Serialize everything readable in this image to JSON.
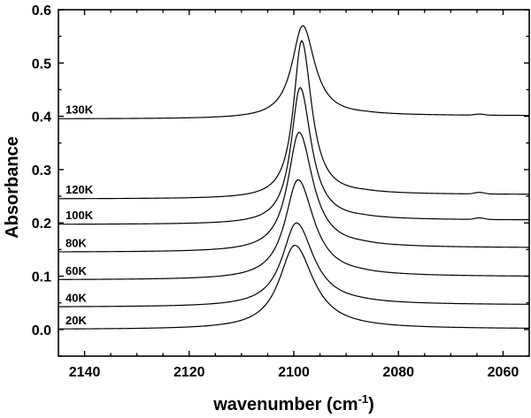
{
  "chart_data": {
    "type": "line",
    "xlabel": "wavenumber (cm",
    "xlabel_sup": "-1",
    "xlabel_end": ")",
    "ylabel": "Absorbance",
    "xlim": [
      2145,
      2055
    ],
    "ylim": [
      -0.05,
      0.6
    ],
    "x_ticks": [
      2140,
      2120,
      2100,
      2080,
      2060
    ],
    "y_ticks": [
      0.0,
      0.1,
      0.2,
      0.3,
      0.4,
      0.5,
      0.6
    ],
    "y_tick_labels": [
      "0.0",
      "0.1",
      "0.2",
      "0.3",
      "0.4",
      "0.5",
      "0.6"
    ],
    "series": [
      {
        "name": "20K",
        "baseline": 0.0,
        "peak_x": 2099.8,
        "peak_height": 0.158,
        "left_hwhm": 3.6,
        "right_hwhm": 4.3,
        "tail": 0.001,
        "shoulder": 0.0
      },
      {
        "name": "40K",
        "baseline": 0.042,
        "peak_x": 2099.5,
        "peak_height": 0.158,
        "left_hwhm": 3.3,
        "right_hwhm": 4.0,
        "tail": 0.004,
        "shoulder": 0.0
      },
      {
        "name": "60K",
        "baseline": 0.093,
        "peak_x": 2099.2,
        "peak_height": 0.188,
        "left_hwhm": 3.0,
        "right_hwhm": 3.7,
        "tail": 0.006,
        "shoulder": 0.0
      },
      {
        "name": "80K",
        "baseline": 0.145,
        "peak_x": 2099.0,
        "peak_height": 0.225,
        "left_hwhm": 2.6,
        "right_hwhm": 3.2,
        "tail": 0.008,
        "shoulder": 0.0
      },
      {
        "name": "100K",
        "baseline": 0.197,
        "peak_x": 2098.8,
        "peak_height": 0.257,
        "left_hwhm": 2.1,
        "right_hwhm": 2.6,
        "tail": 0.008,
        "shoulder": 0.003
      },
      {
        "name": "120K",
        "baseline": 0.245,
        "peak_x": 2098.5,
        "peak_height": 0.297,
        "left_hwhm": 1.9,
        "right_hwhm": 2.3,
        "tail": 0.008,
        "shoulder": 0.003
      },
      {
        "name": "130K",
        "baseline": 0.395,
        "peak_x": 2098.3,
        "peak_height": 0.175,
        "left_hwhm": 2.5,
        "right_hwhm": 2.8,
        "tail": 0.006,
        "shoulder": 0.002
      }
    ],
    "grid": false,
    "legend": "none"
  }
}
